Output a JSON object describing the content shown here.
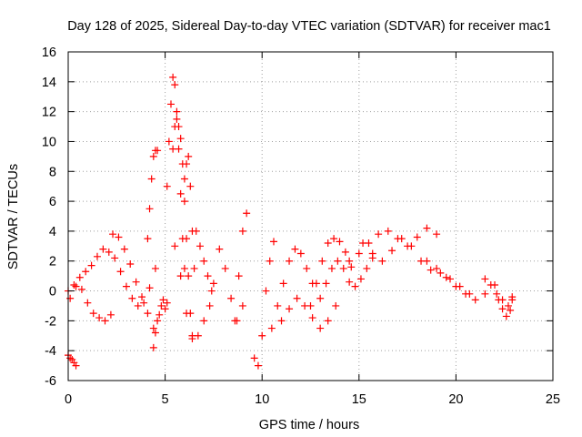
{
  "chart_data": {
    "type": "scatter",
    "title": "Day 128 of 2025, Sidereal Day-to-day VTEC variation (SDTVAR) for receiver mac1",
    "xlabel": "GPS time / hours",
    "ylabel": "SDTVAR / TECUs",
    "xlim": [
      0,
      25
    ],
    "ylim": [
      -6,
      16
    ],
    "xticks": [
      "0",
      "5",
      "10",
      "15",
      "20",
      "25"
    ],
    "yticks": [
      "-6",
      "-4",
      "-2",
      "0",
      "2",
      "4",
      "6",
      "8",
      "10",
      "12",
      "14",
      "16"
    ],
    "grid": true,
    "marker": "+",
    "series": [
      {
        "name": "SDTVAR",
        "color": "#ff0000",
        "segments": [
          {
            "x": [
              0.0,
              0.1,
              0.2,
              0.3,
              0.4
            ],
            "y": [
              -4.3,
              -4.5,
              -4.6,
              -4.8,
              -5.0
            ]
          },
          {
            "x": [
              0.0,
              0.3,
              0.6,
              0.9,
              1.2,
              1.5,
              1.8,
              2.1,
              2.4,
              2.7,
              3.0,
              3.3,
              3.6,
              3.9,
              4.2,
              4.5
            ],
            "y": [
              0.0,
              0.4,
              0.9,
              1.3,
              1.7,
              2.3,
              2.8,
              2.6,
              2.2,
              1.3,
              0.3,
              -0.5,
              -1.0,
              -0.8,
              0.2,
              1.5
            ]
          },
          {
            "x": [
              0.1,
              0.4,
              0.7,
              1.0,
              1.3,
              1.6,
              1.9,
              2.2
            ],
            "y": [
              -0.5,
              0.3,
              0.1,
              -0.8,
              -1.5,
              -1.8,
              -2.0,
              -1.6
            ]
          },
          {
            "x": [
              2.3,
              2.6,
              2.9,
              3.2,
              3.5,
              3.8,
              4.1,
              4.4
            ],
            "y": [
              3.8,
              3.6,
              2.8,
              1.8,
              0.6,
              -0.4,
              -1.5,
              -2.5
            ]
          },
          {
            "x": [
              4.1,
              4.2,
              4.3,
              4.4,
              4.5,
              4.6
            ],
            "y": [
              3.5,
              5.5,
              7.5,
              9.0,
              9.4,
              9.4
            ]
          },
          {
            "x": [
              4.4,
              4.5,
              4.6,
              4.7,
              4.8,
              4.9,
              5.0,
              5.1
            ],
            "y": [
              -3.8,
              -2.8,
              -2.0,
              -1.6,
              -1.0,
              -0.6,
              -1.2,
              -0.8
            ]
          },
          {
            "x": [
              5.1,
              5.2,
              5.3,
              5.4,
              5.5,
              5.6,
              5.7,
              5.8,
              5.9,
              6.0
            ],
            "y": [
              7.0,
              10.0,
              12.5,
              14.3,
              13.8,
              12.0,
              9.5,
              6.5,
              3.5,
              1.5
            ]
          },
          {
            "x": [
              5.4,
              5.5,
              5.6,
              5.7,
              5.8,
              5.9,
              6.0,
              6.1,
              6.2,
              6.3,
              6.4
            ],
            "y": [
              9.5,
              11.0,
              11.5,
              11.0,
              10.2,
              8.5,
              6.0,
              3.5,
              1.0,
              -1.5,
              -3.0
            ]
          },
          {
            "x": [
              6.0,
              6.1,
              6.2,
              6.3,
              6.4,
              6.5
            ],
            "y": [
              7.5,
              8.5,
              9.0,
              7.0,
              4.0,
              1.5
            ]
          },
          {
            "x": [
              5.5,
              5.8,
              6.1,
              6.4,
              6.7,
              7.0,
              7.3
            ],
            "y": [
              3.0,
              1.0,
              -1.5,
              -3.2,
              -3.0,
              -2.0,
              -1.0
            ]
          },
          {
            "x": [
              6.6,
              6.8,
              7.0,
              7.2,
              7.4
            ],
            "y": [
              4.0,
              3.0,
              2.0,
              1.0,
              0.0
            ]
          },
          {
            "x": [
              7.5,
              7.8,
              8.1,
              8.4,
              8.7,
              9.0
            ],
            "y": [
              0.5,
              2.8,
              1.5,
              -0.5,
              -2.0,
              -1.0
            ]
          },
          {
            "x": [
              8.6,
              8.8,
              9.0,
              9.2
            ],
            "y": [
              -2.0,
              1.0,
              4.0,
              5.2
            ]
          },
          {
            "x": [
              9.6,
              9.8,
              10.0,
              10.2,
              10.4,
              10.6
            ],
            "y": [
              -4.5,
              -5.0,
              -3.0,
              0.0,
              2.0,
              3.3
            ]
          },
          {
            "x": [
              10.5,
              10.8,
              11.1,
              11.4,
              11.7,
              12.0,
              12.3,
              12.6
            ],
            "y": [
              -2.5,
              -1.0,
              0.5,
              2.0,
              2.8,
              2.5,
              1.5,
              0.5
            ]
          },
          {
            "x": [
              11.0,
              11.4,
              11.8,
              12.2,
              12.6,
              13.0,
              13.4,
              13.8
            ],
            "y": [
              -2.0,
              -1.2,
              -0.5,
              -1.0,
              -1.8,
              -2.5,
              -2.0,
              -1.0
            ]
          },
          {
            "x": [
              12.5,
              12.8,
              13.1,
              13.4,
              13.7,
              14.0,
              14.3,
              14.6
            ],
            "y": [
              -1.0,
              0.5,
              2.0,
              3.2,
              3.5,
              3.3,
              2.6,
              1.6
            ]
          },
          {
            "x": [
              13.0,
              13.3,
              13.6,
              13.9,
              14.2,
              14.5,
              14.8,
              15.1,
              15.4,
              15.7
            ],
            "y": [
              -0.5,
              0.5,
              1.5,
              2.0,
              1.5,
              0.6,
              0.3,
              0.8,
              1.5,
              2.2
            ]
          },
          {
            "x": [
              14.5,
              15.0,
              15.5,
              16.0,
              16.5,
              17.0,
              17.5,
              18.0,
              18.5,
              19.0
            ],
            "y": [
              2.0,
              2.5,
              3.2,
              3.8,
              4.0,
              3.5,
              3.0,
              3.6,
              4.2,
              3.8
            ]
          },
          {
            "x": [
              15.2,
              15.7,
              16.2,
              16.7,
              17.2,
              17.7,
              18.2,
              18.7,
              19.2,
              19.7,
              20.2,
              20.7
            ],
            "y": [
              3.2,
              2.5,
              2.0,
              2.7,
              3.5,
              3.0,
              2.0,
              1.4,
              1.2,
              0.8,
              0.3,
              -0.2
            ]
          },
          {
            "x": [
              18.5,
              19.0,
              19.5,
              20.0,
              20.5,
              21.0,
              21.5,
              22.0
            ],
            "y": [
              2.0,
              1.5,
              0.9,
              0.3,
              -0.2,
              -0.6,
              -0.2,
              0.4
            ]
          },
          {
            "x": [
              21.5,
              21.8,
              22.1,
              22.4,
              22.7,
              22.9
            ],
            "y": [
              0.8,
              0.4,
              -0.2,
              -0.6,
              -1.0,
              -0.4
            ]
          },
          {
            "x": [
              22.2,
              22.4,
              22.6,
              22.8,
              22.9
            ],
            "y": [
              -0.6,
              -1.2,
              -1.7,
              -1.3,
              -0.6
            ]
          }
        ]
      }
    ]
  }
}
